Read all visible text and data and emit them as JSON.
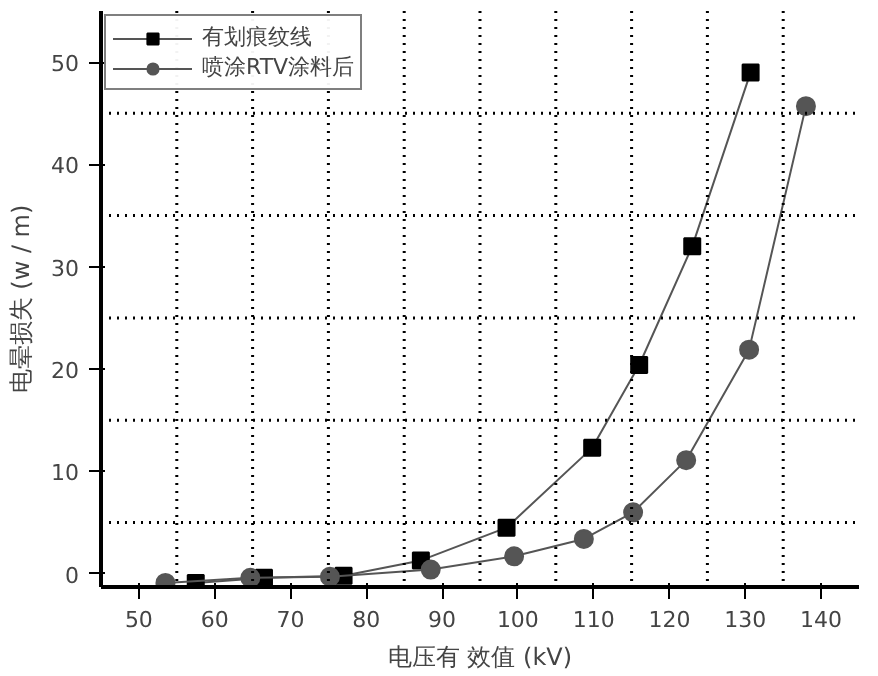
{
  "chart_data": {
    "type": "line",
    "xlabel": "电压有 效值 (kV)",
    "ylabel": "电晕损失 (w / m)",
    "xlim": [
      45,
      145
    ],
    "ylim": [
      -1.3,
      55
    ],
    "xticks": [
      50,
      60,
      70,
      80,
      90,
      100,
      110,
      120,
      130,
      140
    ],
    "yticks": [
      0,
      10,
      20,
      30,
      40,
      50
    ],
    "series": [
      {
        "name": "有划痕纹线",
        "color": "#000000",
        "marker": "square",
        "x": [
          57.5,
          66.5,
          77,
          87.2,
          98.5,
          109.8,
          116,
          123,
          130.7
        ],
        "values": [
          -0.9,
          -0.4,
          -0.2,
          1.3,
          4.5,
          12.3,
          20.4,
          32,
          49
        ]
      },
      {
        "name": "喷涂RTV涂料后",
        "color": "#555555",
        "marker": "circle",
        "x": [
          53.5,
          64.7,
          75.2,
          88.5,
          99.5,
          108.7,
          115.2,
          122.2,
          130.5,
          138
        ],
        "values": [
          -0.9,
          -0.4,
          -0.3,
          0.4,
          1.7,
          3.4,
          6,
          11.1,
          21.9,
          45.7
        ]
      }
    ],
    "ref_lines": [
      {
        "axis": "x",
        "value": 55,
        "color": "#000000",
        "line_style": "dotted"
      },
      {
        "axis": "x",
        "value": 65,
        "color": "#000000",
        "line_style": "dotted"
      },
      {
        "axis": "x",
        "value": 75,
        "color": "#000000",
        "line_style": "dotted"
      },
      {
        "axis": "x",
        "value": 85,
        "color": "#000000",
        "line_style": "dotted"
      },
      {
        "axis": "x",
        "value": 95,
        "color": "#000000",
        "line_style": "dotted"
      },
      {
        "axis": "x",
        "value": 105,
        "color": "#000000",
        "line_style": "dotted"
      },
      {
        "axis": "x",
        "value": 115,
        "color": "#000000",
        "line_style": "dotted"
      },
      {
        "axis": "x",
        "value": 125,
        "color": "#000000",
        "line_style": "dotted"
      },
      {
        "axis": "x",
        "value": 135,
        "color": "#000000",
        "line_style": "dotted"
      },
      {
        "axis": "y",
        "value": 5,
        "color": "#000000",
        "line_style": "dotted"
      },
      {
        "axis": "y",
        "value": 15,
        "color": "#000000",
        "line_style": "dotted"
      },
      {
        "axis": "y",
        "value": 25,
        "color": "#000000",
        "line_style": "dotted"
      },
      {
        "axis": "y",
        "value": 35,
        "color": "#000000",
        "line_style": "dotted"
      },
      {
        "axis": "y",
        "value": 45,
        "color": "#000000",
        "line_style": "dotted"
      }
    ],
    "grid": false,
    "legend": "top left",
    "line_style": "solid"
  }
}
